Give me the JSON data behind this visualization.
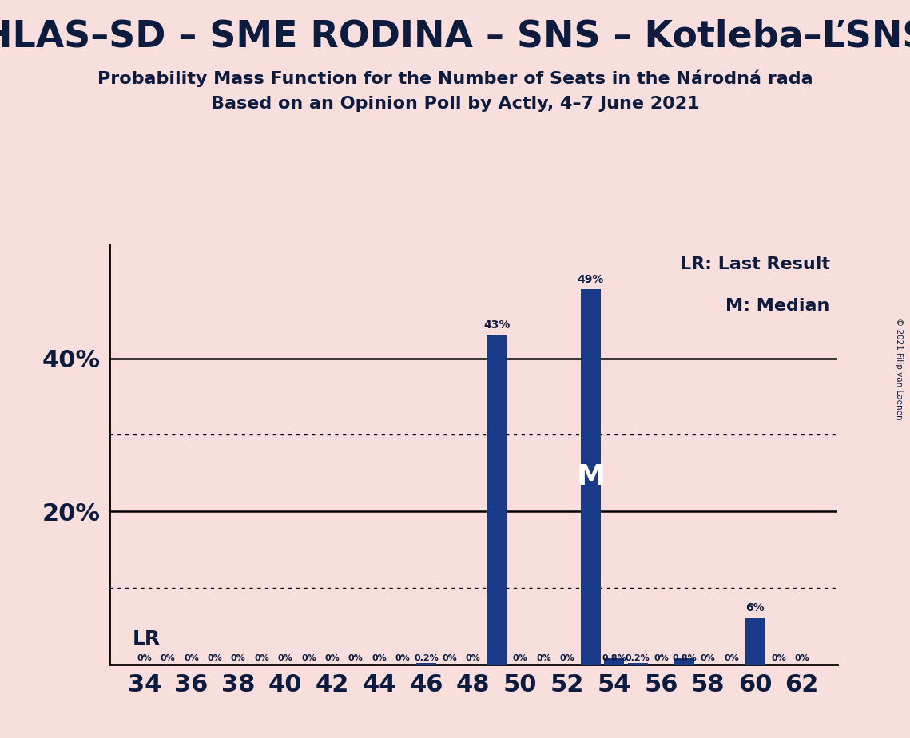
{
  "title": "HLAS–SD – SME RODINA – SNS – Kotleba–ĽSNS",
  "subtitle1": "Probability Mass Function for the Number of Seats in the Národná rada",
  "subtitle2": "Based on an Opinion Poll by Actly, 4–7 June 2021",
  "copyright": "© 2021 Filip van Laenen",
  "background_color": "#f9dede",
  "bar_color": "#1a3a8a",
  "text_color": "#0d1b3e",
  "seats": [
    34,
    35,
    36,
    37,
    38,
    39,
    40,
    41,
    42,
    43,
    44,
    45,
    46,
    47,
    48,
    49,
    50,
    51,
    52,
    53,
    54,
    55,
    56,
    57,
    58,
    59,
    60,
    61,
    62
  ],
  "probabilities": [
    0.0,
    0.0,
    0.0,
    0.0,
    0.0,
    0.0,
    0.0,
    0.0,
    0.0,
    0.0,
    0.0,
    0.0,
    0.2,
    0.0,
    0.0,
    43.0,
    0.0,
    0.0,
    0.0,
    49.0,
    0.8,
    0.2,
    0.0,
    0.8,
    0.0,
    0.0,
    6.0,
    0.0,
    0.0
  ],
  "bar_labels": [
    "0%",
    "0%",
    "0%",
    "0%",
    "0%",
    "0%",
    "0%",
    "0%",
    "0%",
    "0%",
    "0%",
    "0%",
    "0.2%",
    "0%",
    "0%",
    "43%",
    "0%",
    "0%",
    "0%",
    "49%",
    "0.8%",
    "0.2%",
    "0%",
    "0.8%",
    "0%",
    "0%",
    "6%",
    "0%",
    "0%"
  ],
  "xlim": [
    32.5,
    63.5
  ],
  "ylim": [
    0,
    55
  ],
  "major_gridlines": [
    20,
    40
  ],
  "minor_gridlines": [
    10,
    30
  ],
  "median_seat": 53,
  "lr_seat": 34,
  "legend_lr": "LR: Last Result",
  "legend_m": "M: Median",
  "xtick_positions": [
    34,
    36,
    38,
    40,
    42,
    44,
    46,
    48,
    50,
    52,
    54,
    56,
    58,
    60,
    62
  ],
  "ytick_shown": [
    20,
    40
  ],
  "bar_width": 0.85
}
